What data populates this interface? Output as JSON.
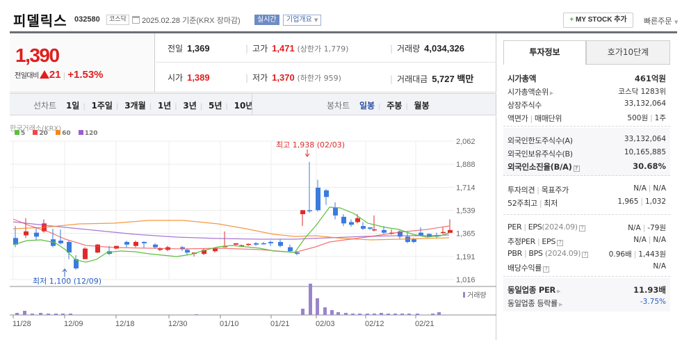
{
  "header": {
    "stock_name": "피델릭스",
    "stock_code": "032580",
    "market": "코스닥",
    "date": "2025.02.28",
    "date_suffix": "기준(KRX 장마감)",
    "realtime_label": "실시간",
    "company_info_label": "기업개요",
    "mystock_plus": "+",
    "mystock_label": "MY STOCK 추가",
    "quick_order_label": "빠른주문"
  },
  "summary": {
    "current_price": "1,390",
    "change_label": "전일대비",
    "change_value": "21",
    "change_percent": "+1.53%",
    "prev_close_label": "전일",
    "prev_close": "1,369",
    "high_label": "고가",
    "high": "1,471",
    "upper_limit": "(상한가 1,779)",
    "volume_label": "거래량",
    "volume": "4,034,326",
    "open_label": "시가",
    "open": "1,389",
    "low_label": "저가",
    "low": "1,370",
    "lower_limit": "(하한가 959)",
    "trade_value_label": "거래대금",
    "trade_value": "5,727 백만"
  },
  "tabs": {
    "line_chart_label": "선차트",
    "line_periods": [
      "1일",
      "1주일",
      "3개월",
      "1년",
      "3년",
      "5년",
      "10년"
    ],
    "candle_chart_label": "봉차트",
    "candle_periods": [
      "일봉",
      "주봉",
      "월봉"
    ],
    "active_candle": "일봉"
  },
  "panel": {
    "tab_active": "투자정보",
    "tab_other": "호가10단계",
    "section1": {
      "market_cap_label": "시가총액",
      "market_cap": "461억원",
      "rank_label": "시가총액순위",
      "rank": "코스닥 1283위",
      "shares_label": "상장주식수",
      "shares": "33,132,064",
      "face_label": "액면가",
      "unit_label": "매매단위",
      "face": "500원",
      "unit": "1주"
    },
    "section2": {
      "foreign_limit_label": "외국인한도주식수(A)",
      "foreign_limit": "33,132,064",
      "foreign_hold_label": "외국인보유주식수(B)",
      "foreign_hold": "10,165,885",
      "foreign_rate_label": "외국인소진율(B/A)",
      "foreign_rate": "30.68%"
    },
    "section3": {
      "opinion_label": "투자의견",
      "target_label": "목표주가",
      "opinion": "N/A",
      "target": "N/A",
      "w52_high_label": "52주최고",
      "w52_low_label": "최저",
      "w52_high": "1,965",
      "w52_low": "1,032"
    },
    "section4": {
      "per_label": "PER",
      "eps_label": "EPS",
      "per_period": "(2024.09)",
      "per": "N/A",
      "eps": "-79원",
      "est_per_label": "추정PER",
      "est_eps_label": "EPS",
      "est_per": "N/A",
      "est_eps": "N/A",
      "pbr_label": "PBR",
      "bps_label": "BPS",
      "pbr_period": "(2024.09)",
      "pbr": "0.96배",
      "bps": "1,443원",
      "dividend_label": "배당수익률",
      "dividend": "N/A"
    },
    "section5": {
      "industry_per_label": "동일업종 PER",
      "industry_per": "11.93배",
      "industry_rate_label": "동일업종 등락률",
      "industry_rate": "-3.75%"
    }
  },
  "chart_data": {
    "type": "candlestick",
    "source_label": "한국거래소(KRX)",
    "legend": [
      {
        "name": "5",
        "color": "#5bbf3c"
      },
      {
        "name": "20",
        "color": "#ef4646"
      },
      {
        "name": "60",
        "color": "#f5861f"
      },
      {
        "name": "120",
        "color": "#9b5fcf"
      }
    ],
    "y_ticks": [
      "2,062",
      "1,888",
      "1,714",
      "1,539",
      "1,365",
      "1,191",
      "1,016"
    ],
    "x_ticks": [
      "11/28",
      "12/09",
      "12/18",
      "12/30",
      "01/10",
      "01/21",
      "02/03",
      "02/12",
      "02/21"
    ],
    "max_annotation": "최고 1,938 (02/03)",
    "min_annotation": "최저 1,100 (12/09)",
    "volume_label": "거래량",
    "up_color": "#e02a2a",
    "down_color": "#3a7be0",
    "ylim": [
      1016,
      2062
    ]
  }
}
